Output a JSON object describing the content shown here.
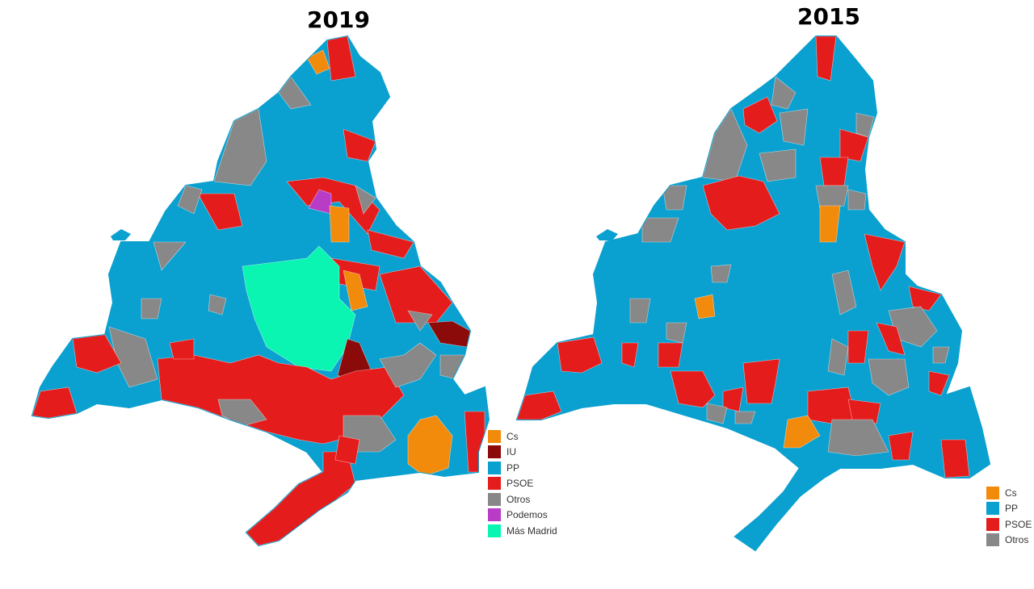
{
  "colors": {
    "Cs": "#f28b0c",
    "IU": "#8b0a0a",
    "PP": "#0aa0cf",
    "PSOE": "#e51c1c",
    "Otros": "#888888",
    "Podemos": "#b93cc6",
    "Más Madrid": "#0af5b2"
  },
  "maps": [
    {
      "title": "2019",
      "legend": [
        {
          "key": "Cs",
          "label": "Cs"
        },
        {
          "key": "IU",
          "label": "IU"
        },
        {
          "key": "PP",
          "label": "PP"
        },
        {
          "key": "PSOE",
          "label": "PSOE"
        },
        {
          "key": "Otros",
          "label": "Otros"
        },
        {
          "key": "Podemos",
          "label": "Podemos"
        },
        {
          "key": "Más Madrid",
          "label": "Más Madrid"
        }
      ]
    },
    {
      "title": "2015",
      "legend": [
        {
          "key": "Cs",
          "label": "Cs"
        },
        {
          "key": "PP",
          "label": "PP"
        },
        {
          "key": "PSOE",
          "label": "PSOE"
        },
        {
          "key": "Otros",
          "label": "Otros"
        }
      ]
    }
  ]
}
